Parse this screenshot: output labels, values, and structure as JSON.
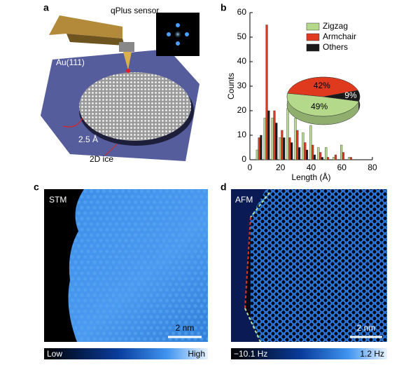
{
  "panels": {
    "a": {
      "letter": "a",
      "sensor": "qPlus sensor",
      "substrate": "Au(111)",
      "height": "2.5 Å",
      "ice": "2D ice"
    },
    "b": {
      "letter": "b"
    },
    "c": {
      "letter": "c",
      "mode": "STM",
      "scale": "2 nm",
      "low": "Low",
      "high": "High"
    },
    "d": {
      "letter": "d",
      "mode": "AFM",
      "scale": "2 nm",
      "low": "−10.1 Hz",
      "high": "1.2 Hz"
    }
  },
  "chart_data": [
    {
      "type": "bar",
      "x_label": "Length (Å)",
      "y_label": "Counts",
      "x": [
        6,
        11,
        16,
        21,
        26,
        31,
        36,
        41,
        46,
        51,
        56,
        61,
        66
      ],
      "series": [
        {
          "name": "Zigzag",
          "color": "#b4d98a",
          "values": [
            4,
            17,
            17,
            9,
            21,
            17,
            11,
            14,
            5,
            5,
            1,
            6,
            1
          ]
        },
        {
          "name": "Armchair",
          "color": "#e03a1e",
          "values": [
            9,
            55,
            20,
            12,
            9,
            12,
            7,
            6,
            3,
            1,
            2,
            3,
            1
          ]
        },
        {
          "name": "Others",
          "color": "#1a1a1a",
          "values": [
            10,
            20,
            15,
            9,
            7,
            5,
            4,
            2,
            1,
            0,
            0,
            0,
            0
          ]
        }
      ],
      "xlim": [
        0,
        80
      ],
      "xticks": [
        0,
        20,
        40,
        60,
        80
      ],
      "ylim": [
        0,
        60
      ],
      "yticks": [
        0,
        10,
        20,
        30,
        40,
        50,
        60
      ],
      "legend": "upper-right"
    },
    {
      "type": "pie",
      "values": [
        49,
        42,
        9
      ],
      "value_labels": [
        "49%",
        "42%",
        "9%"
      ],
      "colors": [
        "#b4d98a",
        "#e03a1e",
        "#1a1a1a"
      ]
    }
  ]
}
